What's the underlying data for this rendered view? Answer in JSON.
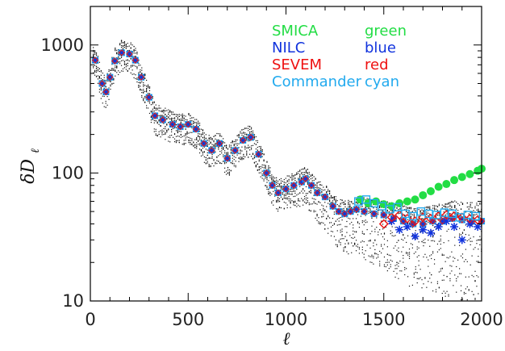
{
  "chart_data": {
    "type": "scatter",
    "title": "",
    "xlabel": "ℓ",
    "ylabel": "δD",
    "ylabel_subscript": "ℓ",
    "xlim": [
      0,
      2000
    ],
    "ylim": [
      10,
      2000
    ],
    "yscale": "log",
    "x_ticks": [
      0,
      500,
      1000,
      1500,
      2000
    ],
    "x_tick_labels": [
      "0",
      "500",
      "1000",
      "1500",
      "2000"
    ],
    "y_ticks": [
      10,
      100,
      1000
    ],
    "y_tick_labels": [
      "10",
      "100",
      "1000"
    ],
    "grid": false,
    "legend_position": "top-right",
    "legend": [
      {
        "method": "SMICA",
        "color_name": "green",
        "color": "#22dd44"
      },
      {
        "method": "NILC",
        "color_name": "blue",
        "color": "#1133dd"
      },
      {
        "method": "SEVEM",
        "color_name": "red",
        "color": "#ee1111"
      },
      {
        "method": "Commander",
        "color_name": "cyan",
        "color": "#22aaee"
      }
    ],
    "shared_curve": {
      "x": [
        25,
        60,
        80,
        100,
        125,
        160,
        200,
        230,
        260,
        300,
        330,
        370,
        420,
        460,
        500,
        540,
        580,
        620,
        660,
        700,
        740,
        780,
        820,
        860,
        900,
        930,
        960,
        1000,
        1040,
        1080,
        1100,
        1130,
        1160,
        1200,
        1240,
        1270,
        1300,
        1330,
        1360,
        1400,
        1450,
        1500,
        1550,
        1600,
        1650,
        1700,
        1750,
        1800,
        1850,
        1900,
        1950,
        2000
      ],
      "y": [
        760,
        500,
        430,
        560,
        750,
        870,
        850,
        760,
        560,
        390,
        280,
        260,
        240,
        230,
        240,
        220,
        170,
        150,
        170,
        130,
        150,
        180,
        190,
        140,
        100,
        80,
        70,
        75,
        80,
        85,
        90,
        80,
        70,
        65,
        55,
        50,
        48,
        50,
        52,
        50,
        48,
        47,
        44,
        42,
        40,
        40,
        42,
        42,
        44,
        43,
        42,
        42
      ]
    },
    "series": [
      {
        "name": "SMICA",
        "color": "#22dd44",
        "marker": "circle",
        "x": [
          1380,
          1420,
          1460,
          1500,
          1540,
          1580,
          1620,
          1660,
          1700,
          1740,
          1780,
          1820,
          1860,
          1900,
          1940,
          1980,
          2000
        ],
        "y": [
          62,
          58,
          60,
          57,
          55,
          58,
          60,
          62,
          67,
          72,
          78,
          82,
          88,
          93,
          98,
          104,
          108
        ]
      },
      {
        "name": "NILC",
        "color": "#1133dd",
        "marker": "asterisk",
        "x": [
          1540,
          1580,
          1620,
          1660,
          1700,
          1740,
          1780,
          1820,
          1860,
          1900,
          1940,
          1980
        ],
        "y": [
          42,
          36,
          38,
          32,
          36,
          34,
          38,
          42,
          38,
          30,
          40,
          38
        ]
      },
      {
        "name": "SEVEM",
        "color": "#ee1111",
        "marker": "diamond",
        "x": [
          1500,
          1540,
          1580,
          1620,
          1660,
          1700,
          1740,
          1780,
          1820,
          1860,
          1900,
          1940,
          1980
        ],
        "y": [
          40,
          45,
          47,
          44,
          42,
          45,
          44,
          46,
          47,
          46,
          45,
          44,
          43
        ]
      },
      {
        "name": "Commander",
        "color": "#22aaee",
        "marker": "square",
        "x": [
          1370,
          1410,
          1450,
          1490,
          1530,
          1570,
          1610,
          1650,
          1690,
          1730,
          1770,
          1810,
          1850,
          1890,
          1930,
          1970
        ],
        "y": [
          60,
          62,
          58,
          55,
          52,
          54,
          48,
          46,
          50,
          48,
          47,
          49,
          48,
          45,
          47,
          46
        ]
      }
    ]
  }
}
